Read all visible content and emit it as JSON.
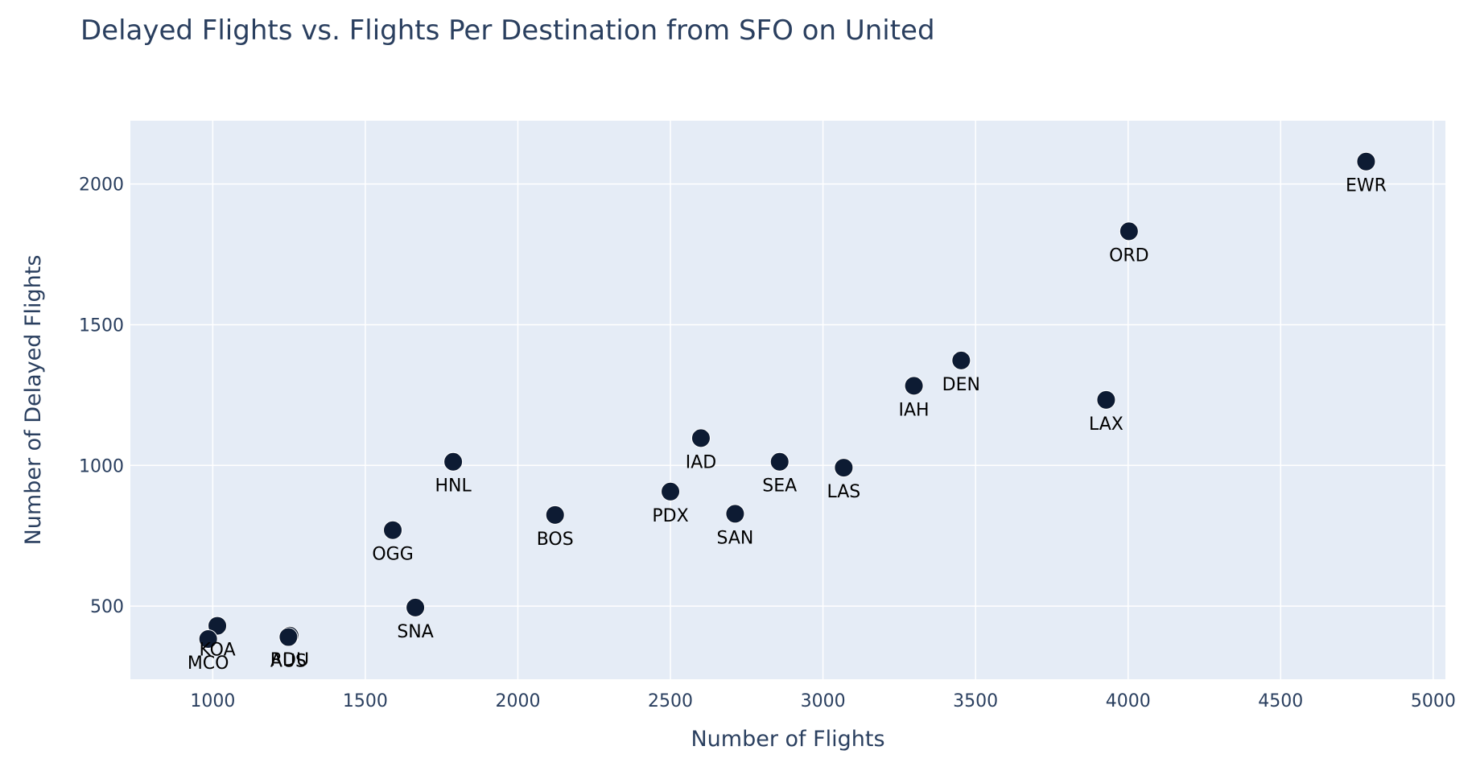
{
  "chart_data": {
    "type": "scatter",
    "title": "Delayed Flights vs. Flights Per Destination from SFO on United",
    "xlabel": "Number of Flights",
    "ylabel": "Number of Delayed Flights",
    "xlim": [
      730,
      5040
    ],
    "ylim": [
      240,
      2225
    ],
    "xticks": [
      1000,
      1500,
      2000,
      2500,
      3000,
      3500,
      4000,
      4500,
      5000
    ],
    "yticks": [
      500,
      1000,
      1500,
      2000
    ],
    "grid": true,
    "legend": "none",
    "marker_color": "#0d1b33",
    "plot_bg": "#e5ecf6",
    "points": [
      {
        "label": "EWR",
        "x": 4780,
        "y": 2080
      },
      {
        "label": "ORD",
        "x": 4003,
        "y": 1832
      },
      {
        "label": "DEN",
        "x": 3453,
        "y": 1373
      },
      {
        "label": "IAH",
        "x": 3298,
        "y": 1283
      },
      {
        "label": "LAX",
        "x": 3928,
        "y": 1233
      },
      {
        "label": "IAD",
        "x": 2600,
        "y": 1097
      },
      {
        "label": "SEA",
        "x": 2858,
        "y": 1013
      },
      {
        "label": "HNL",
        "x": 1788,
        "y": 1013
      },
      {
        "label": "LAS",
        "x": 3068,
        "y": 992
      },
      {
        "label": "PDX",
        "x": 2500,
        "y": 907
      },
      {
        "label": "SAN",
        "x": 2712,
        "y": 828
      },
      {
        "label": "BOS",
        "x": 2122,
        "y": 824
      },
      {
        "label": "OGG",
        "x": 1590,
        "y": 770
      },
      {
        "label": "SNA",
        "x": 1664,
        "y": 495
      },
      {
        "label": "RDU",
        "x": 1252,
        "y": 395
      },
      {
        "label": "AUS",
        "x": 1248,
        "y": 390
      },
      {
        "label": "KOA",
        "x": 1015,
        "y": 430
      },
      {
        "label": "MCO",
        "x": 985,
        "y": 383
      }
    ]
  }
}
